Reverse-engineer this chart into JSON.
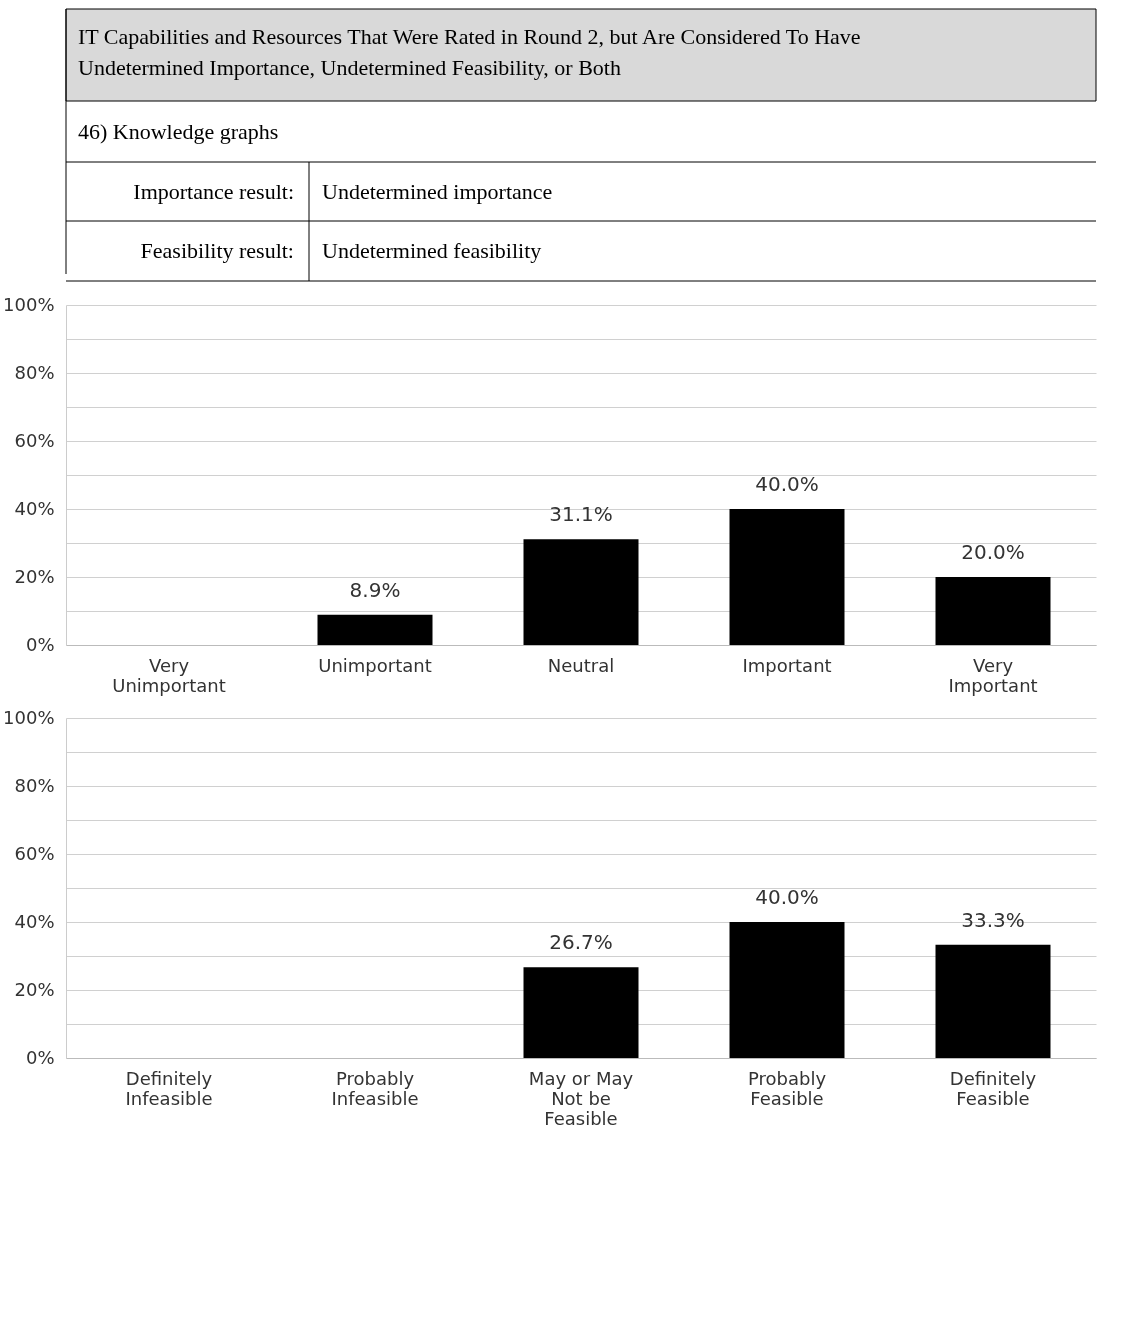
{
  "chart_data": [
    {
      "type": "bar",
      "title": "IT Capabilities and Resources That Were Rated in Round 2, but Are Considered To Have Undetermined Importance, Undetermined Feasibility, or Both",
      "subtitle": "46) Knowledge graphs",
      "annotations": [
        "Importance result:",
        "Undetermined importance",
        "Feasibility result:",
        "Undetermined feasibility"
      ],
      "categories": [
        "Very Unimportant",
        "Unimportant",
        "Neutral",
        "Important",
        "Very Important"
      ],
      "values": [
        0,
        8.9,
        31.1,
        40.0,
        20.0
      ],
      "value_labels": [
        null,
        "8.9%",
        "31.1%",
        "40.0%",
        "20.0%"
      ],
      "color": "#000000",
      "ylim": [
        0,
        100
      ],
      "yticks": [
        {
          "value": 0,
          "label": "0%"
        },
        {
          "value": 10,
          "label": null
        },
        {
          "value": 20,
          "label": "20%"
        },
        {
          "value": 30,
          "label": null
        },
        {
          "value": 40,
          "label": "40%"
        },
        {
          "value": 50,
          "label": null
        },
        {
          "value": 60,
          "label": "60%"
        },
        {
          "value": 70,
          "label": null
        },
        {
          "value": 80,
          "label": "80%"
        },
        {
          "value": 90,
          "label": null
        },
        {
          "value": 100,
          "label": "100%"
        }
      ],
      "grid": "y"
    },
    {
      "type": "bar",
      "categories": [
        "Definitely Infeasible",
        "Probably Infeasible",
        "May or May Not be Feasible",
        "Probably Feasible",
        "Definitely Feasible"
      ],
      "values": [
        0,
        0,
        26.7,
        40.0,
        33.3
      ],
      "value_labels": [
        null,
        null,
        "26.7%",
        "40.0%",
        "33.3%"
      ],
      "color": "#000000",
      "ylim": [
        0,
        100
      ],
      "yticks": [
        {
          "value": 0,
          "label": "0%"
        },
        {
          "value": 10,
          "label": null
        },
        {
          "value": 20,
          "label": "20%"
        },
        {
          "value": 30,
          "label": null
        },
        {
          "value": 40,
          "label": "40%"
        },
        {
          "value": 50,
          "label": null
        },
        {
          "value": 60,
          "label": "60%"
        },
        {
          "value": 70,
          "label": null
        },
        {
          "value": 80,
          "label": "80%"
        },
        {
          "value": 90,
          "label": null
        },
        {
          "value": 100,
          "label": "100%"
        }
      ],
      "grid": "y"
    }
  ]
}
